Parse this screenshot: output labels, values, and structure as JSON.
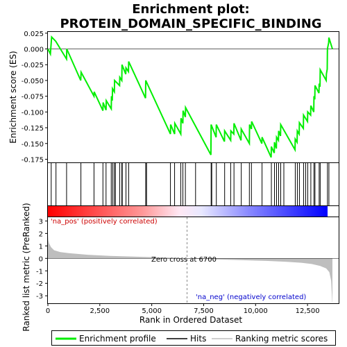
{
  "chart_data": {
    "type": "line",
    "title_line1": "Enrichment plot:",
    "title_line2": "PROTEIN_DOMAIN_SPECIFIC_BINDING",
    "top_panel": {
      "ylabel": "Enrichment score (ES)",
      "ylim": [
        -0.18,
        0.027
      ],
      "yticks": [
        0.025,
        0.0,
        -0.025,
        -0.05,
        -0.075,
        -0.1,
        -0.125,
        -0.15,
        -0.175
      ],
      "ytick_labels": [
        "0.025",
        "0.000",
        "-0.025",
        "-0.050",
        "-0.075",
        "-0.100",
        "-0.125",
        "-0.150",
        "-0.175"
      ],
      "color": "#00ee00",
      "es_points": [
        [
          0,
          0.0
        ],
        [
          120,
          -0.008
        ],
        [
          180,
          0.019
        ],
        [
          380,
          0.012
        ],
        [
          900,
          -0.016
        ],
        [
          910,
          0.0
        ],
        [
          1580,
          -0.05
        ],
        [
          1600,
          -0.037
        ],
        [
          2220,
          -0.075
        ],
        [
          2230,
          -0.068
        ],
        [
          2650,
          -0.098
        ],
        [
          2660,
          -0.085
        ],
        [
          2800,
          -0.097
        ],
        [
          2810,
          -0.082
        ],
        [
          3050,
          -0.095
        ],
        [
          3060,
          -0.075
        ],
        [
          3100,
          -0.082
        ],
        [
          3110,
          -0.063
        ],
        [
          3200,
          -0.068
        ],
        [
          3210,
          -0.05
        ],
        [
          3450,
          -0.058
        ],
        [
          3460,
          -0.045
        ],
        [
          3560,
          -0.05
        ],
        [
          3570,
          -0.025
        ],
        [
          3750,
          -0.04
        ],
        [
          3760,
          -0.03
        ],
        [
          3880,
          -0.036
        ],
        [
          3890,
          -0.02
        ],
        [
          4700,
          -0.078
        ],
        [
          4710,
          -0.05
        ],
        [
          5900,
          -0.135
        ],
        [
          5910,
          -0.12
        ],
        [
          6100,
          -0.135
        ],
        [
          6110,
          -0.118
        ],
        [
          6400,
          -0.135
        ],
        [
          6410,
          -0.11
        ],
        [
          6500,
          -0.118
        ],
        [
          6510,
          -0.098
        ],
        [
          6620,
          -0.108
        ],
        [
          6630,
          -0.093
        ],
        [
          7850,
          -0.168
        ],
        [
          7860,
          -0.12
        ],
        [
          8100,
          -0.14
        ],
        [
          8110,
          -0.12
        ],
        [
          8500,
          -0.147
        ],
        [
          8510,
          -0.13
        ],
        [
          8800,
          -0.145
        ],
        [
          8810,
          -0.13
        ],
        [
          8950,
          -0.135
        ],
        [
          8960,
          -0.118
        ],
        [
          9300,
          -0.145
        ],
        [
          9310,
          -0.127
        ],
        [
          9700,
          -0.15
        ],
        [
          9710,
          -0.12
        ],
        [
          9800,
          -0.127
        ],
        [
          9810,
          -0.115
        ],
        [
          10300,
          -0.15
        ],
        [
          10310,
          -0.14
        ],
        [
          10750,
          -0.172
        ],
        [
          10760,
          -0.155
        ],
        [
          10900,
          -0.165
        ],
        [
          10910,
          -0.148
        ],
        [
          11000,
          -0.158
        ],
        [
          11010,
          -0.14
        ],
        [
          11100,
          -0.145
        ],
        [
          11110,
          -0.13
        ],
        [
          11200,
          -0.138
        ],
        [
          11210,
          -0.12
        ],
        [
          11900,
          -0.16
        ],
        [
          11910,
          -0.143
        ],
        [
          12000,
          -0.148
        ],
        [
          12010,
          -0.13
        ],
        [
          12100,
          -0.135
        ],
        [
          12110,
          -0.117
        ],
        [
          12300,
          -0.126
        ],
        [
          12310,
          -0.105
        ],
        [
          12500,
          -0.115
        ],
        [
          12510,
          -0.1
        ],
        [
          12650,
          -0.105
        ],
        [
          12660,
          -0.09
        ],
        [
          12800,
          -0.1
        ],
        [
          12810,
          -0.075
        ],
        [
          12850,
          -0.08
        ],
        [
          12860,
          -0.058
        ],
        [
          13050,
          -0.07
        ],
        [
          13060,
          -0.055
        ],
        [
          13100,
          -0.06
        ],
        [
          13110,
          -0.033
        ],
        [
          13400,
          -0.05
        ],
        [
          13410,
          -0.04
        ],
        [
          13450,
          -0.032
        ],
        [
          13460,
          0.0
        ],
        [
          13520,
          0.01
        ],
        [
          13530,
          0.018
        ],
        [
          13700,
          0.0
        ]
      ]
    },
    "hits": [
      160,
      390,
      900,
      1590,
      2220,
      2650,
      2800,
      3050,
      3120,
      3200,
      3250,
      3460,
      3560,
      3580,
      3760,
      3890,
      4710,
      4750,
      5900,
      6100,
      6400,
      6500,
      6620,
      7110,
      7860,
      7890,
      8110,
      8510,
      8800,
      8960,
      9310,
      9700,
      9800,
      10310,
      10760,
      10910,
      11010,
      11110,
      11210,
      11360,
      11910,
      12010,
      12110,
      12310,
      12410,
      12510,
      12660,
      12810,
      12860,
      13060,
      13110,
      13460,
      13530
    ],
    "ranked_list": {
      "ylabel": "Ranked list metric (PreRanked)",
      "xlabel": "Rank in Ordered Dataset",
      "ylim": [
        -3.6,
        3.3
      ],
      "yticks": [
        3,
        2,
        1,
        0,
        -1,
        -2,
        -3
      ],
      "ytick_labels": [
        "3",
        "2",
        "1",
        "0",
        "-1",
        "-2",
        "-3"
      ],
      "xlim": [
        0,
        14000
      ],
      "xticks": [
        0,
        2500,
        5000,
        7500,
        10000,
        12500
      ],
      "xtick_labels": [
        "0",
        "2,500",
        "5,000",
        "7,500",
        "10,000",
        "12,500"
      ],
      "metric_points": [
        [
          0,
          2.0
        ],
        [
          20,
          1.45
        ],
        [
          60,
          1.2
        ],
        [
          150,
          0.9
        ],
        [
          300,
          0.65
        ],
        [
          600,
          0.5
        ],
        [
          1000,
          0.42
        ],
        [
          2000,
          0.28
        ],
        [
          3000,
          0.2
        ],
        [
          4000,
          0.15
        ],
        [
          5000,
          0.1
        ],
        [
          6000,
          0.05
        ],
        [
          6700,
          0.0
        ],
        [
          7500,
          -0.05
        ],
        [
          8500,
          -0.1
        ],
        [
          9500,
          -0.15
        ],
        [
          10500,
          -0.2
        ],
        [
          11500,
          -0.28
        ],
        [
          12200,
          -0.35
        ],
        [
          12700,
          -0.45
        ],
        [
          13100,
          -0.6
        ],
        [
          13400,
          -0.8
        ],
        [
          13550,
          -1.1
        ],
        [
          13640,
          -1.8
        ],
        [
          13690,
          -3.5
        ],
        [
          13700,
          -3.5
        ]
      ],
      "fill_color": "#bebebe",
      "zero_cross": 6700,
      "zero_cross_label": "Zero cross at 6700",
      "pos_label": "'na_pos' (positively correlated)",
      "neg_label": "'na_neg' (negatively correlated)",
      "pos_label_color": "#cc0000",
      "neg_label_color": "#0000cc"
    },
    "total_genes": 13700,
    "legend": [
      {
        "label": "Enrichment profile",
        "color": "#00ee00"
      },
      {
        "label": "Hits",
        "color": "#000000"
      },
      {
        "label": "Ranking metric scores",
        "color": "#bebebe"
      }
    ]
  }
}
